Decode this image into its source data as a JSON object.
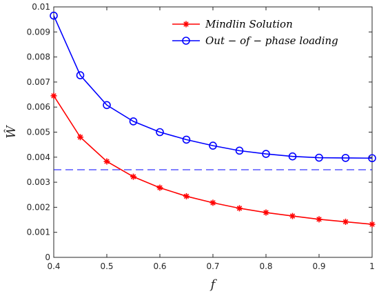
{
  "chart_data": {
    "type": "line",
    "xlabel": "f",
    "ylabel": "Ŵ",
    "xlim": [
      0.4,
      1.0
    ],
    "ylim": [
      0,
      0.01
    ],
    "xticks": [
      "0.4",
      "0.5",
      "0.6",
      "0.7",
      "0.8",
      "0.9",
      "1"
    ],
    "xtick_values": [
      0.4,
      0.5,
      0.6,
      0.7,
      0.8,
      0.9,
      1.0
    ],
    "yticks": [
      "0",
      "0.001",
      "0.002",
      "0.003",
      "0.004",
      "0.005",
      "0.006",
      "0.007",
      "0.008",
      "0.009",
      "0.01"
    ],
    "ytick_values": [
      0,
      0.001,
      0.002,
      0.003,
      0.004,
      0.005,
      0.006,
      0.007,
      0.008,
      0.009,
      0.01
    ],
    "grid": false,
    "legend_position": "top-right",
    "x": [
      0.4,
      0.45,
      0.5,
      0.55,
      0.6,
      0.65,
      0.7,
      0.75,
      0.8,
      0.85,
      0.9,
      0.95,
      1.0
    ],
    "series": [
      {
        "name": "Mindlin Solution",
        "color": "#ff0000",
        "marker": "asterisk",
        "values": [
          0.00645,
          0.0048,
          0.00383,
          0.00322,
          0.00278,
          0.00244,
          0.00218,
          0.00196,
          0.00179,
          0.00165,
          0.00152,
          0.00142,
          0.00132
        ]
      },
      {
        "name": "Out − of − phase loading",
        "color": "#0000ff",
        "marker": "circle",
        "values": [
          0.00965,
          0.00727,
          0.00608,
          0.00543,
          0.005,
          0.0047,
          0.00446,
          0.00426,
          0.00413,
          0.00403,
          0.00398,
          0.00397,
          0.00396
        ]
      }
    ],
    "reference_line": {
      "y": 0.0035,
      "color": "#0000ff",
      "style": "dashed"
    }
  }
}
